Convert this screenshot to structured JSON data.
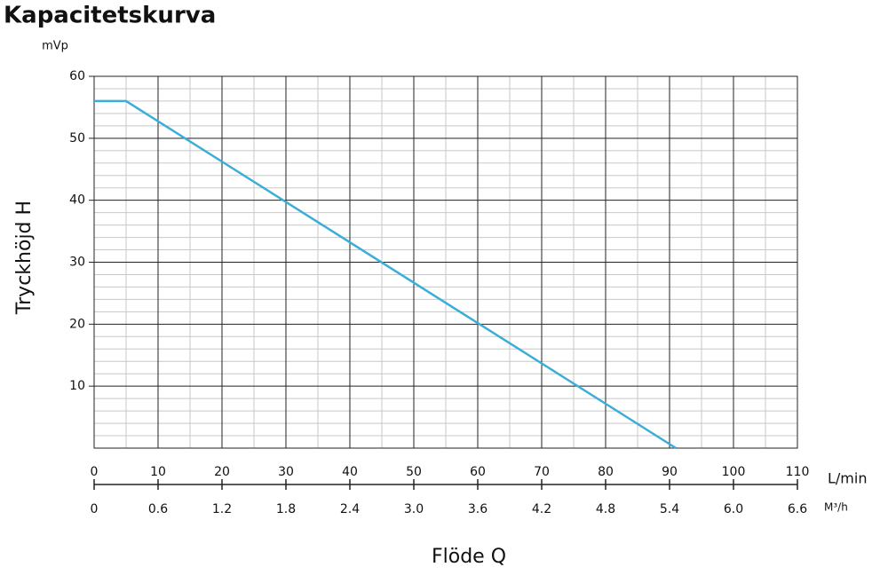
{
  "chart_data": {
    "type": "line",
    "title": "Kapacitetskurva",
    "y_unit": "mVp",
    "y_label": "Tryckhöjd H",
    "x_label": "Flöde Q",
    "x_unit": "L/min",
    "x2_unit": "M³/h",
    "x": [
      0,
      5,
      91
    ],
    "series": [
      {
        "color": "#3aaed8",
        "values": [
          56,
          56,
          0
        ]
      }
    ],
    "xlim": [
      0,
      110
    ],
    "xticks": [
      0,
      10,
      20,
      30,
      40,
      50,
      60,
      70,
      80,
      90,
      100,
      110
    ],
    "x2lim": [
      0,
      6.6
    ],
    "x2ticks": [
      0,
      0.6,
      1.2,
      1.8,
      2.4,
      {
        "value": 3,
        "label": "3.0"
      },
      3.6,
      4.2,
      4.8,
      5.4,
      {
        "value": 6,
        "label": "6.0"
      },
      6.6
    ],
    "ylim": [
      0,
      60
    ],
    "yticks": [
      10,
      20,
      30,
      40,
      50,
      60
    ],
    "grid": true
  }
}
